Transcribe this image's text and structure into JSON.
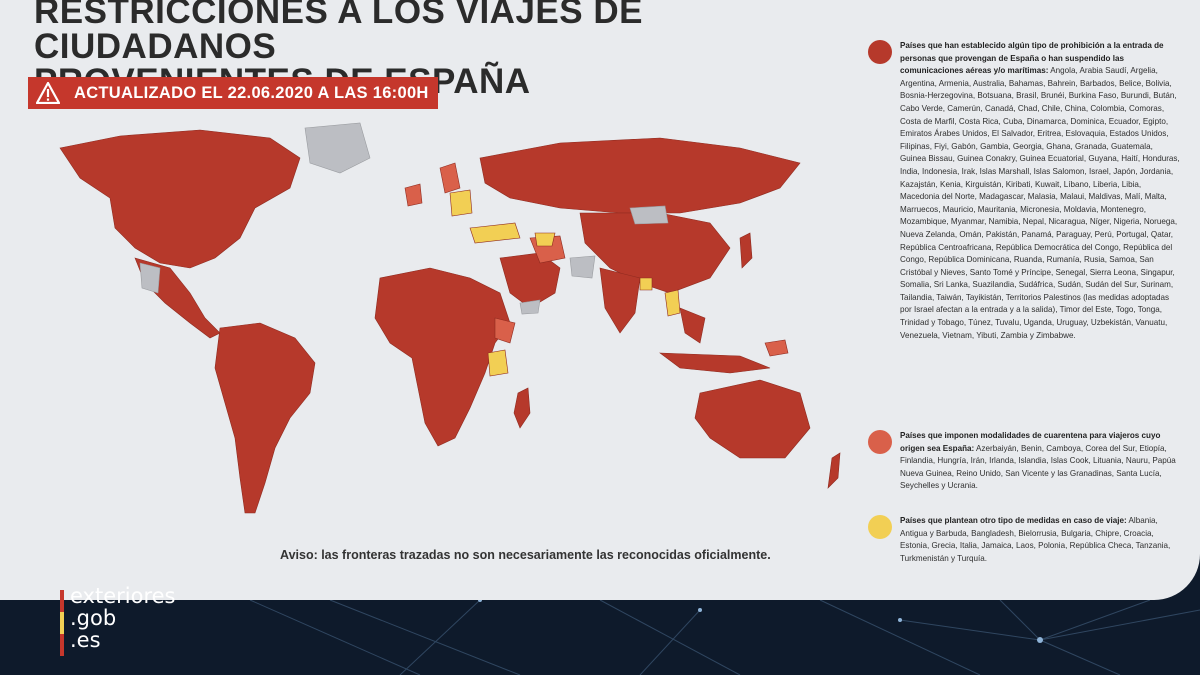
{
  "title_line1": "RESTRICCIONES A LOS VIAJES DE CIUDADANOS",
  "title_line2": "PROVENIENTES DE ESPAÑA",
  "updated_label": "ACTUALIZADO EL 22.06.2020 A LAS 16:00H",
  "notice": "Aviso: las fronteras trazadas no son necesariamente las reconocidas oficialmente.",
  "colors": {
    "prohibition": "#b6392b",
    "quarantine": "#d9604a",
    "other_measures": "#f2cf54",
    "no_data": "#bcbec3",
    "banner": "#c5372c"
  },
  "legend": [
    {
      "color": "#b6392b",
      "heading": "Países que han establecido algún tipo de prohibición a la entrada de personas que provengan de España o han suspendido las comunicaciones aéreas y/o marítimas:",
      "countries": "Angola, Arabia Saudí, Argelia, Argentina, Armenia, Australia, Bahamas, Bahrein, Barbados, Belice, Bolivia, Bosnia-Herzegovina, Botsuana, Brasil, Brunéi, Burkina Faso, Burundi, Bután, Cabo Verde, Camerún, Canadá, Chad, Chile, China, Colombia, Comoras, Costa de Marfil, Costa Rica, Cuba, Dinamarca, Dominica, Ecuador, Egipto, Emiratos Árabes Unidos, El Salvador, Eritrea, Eslovaquia, Estados Unidos, Filipinas, Fiyi, Gabón, Gambia, Georgia, Ghana, Granada, Guatemala, Guinea Bissau, Guinea Conakry, Guinea Ecuatorial, Guyana, Haití, Honduras, India, Indonesia, Irak, Islas Marshall, Islas Salomon, Israel, Japón, Jordania, Kazajstán, Kenia, Kirguistán, Kiribati, Kuwait, Líbano, Liberia, Libia, Macedonia del Norte, Madagascar, Malasia, Malaui, Maldivas, Malí, Malta, Marruecos, Mauricio, Mauritania, Micronesia, Moldavia, Montenegro, Mozambique, Myanmar, Namibia, Nepal, Nicaragua, Níger, Nigeria, Noruega, Nueva Zelanda, Omán, Pakistán, Panamá, Paraguay, Perú, Portugal, Qatar, República Centroafricana, República Democrática del Congo, República del Congo, República Dominicana, Ruanda, Rumanía, Rusia, Samoa, San Cristóbal y Nieves, Santo Tomé y Príncipe, Senegal, Sierra Leona, Singapur, Somalia, Sri Lanka, Suazilandia, Sudáfrica, Sudán, Sudán del Sur, Surinam, Tailandia, Taiwán, Tayikistán, Territorios Palestinos (las medidas adoptadas por Israel afectan a la entrada y a la salida), Timor del Este, Togo, Tonga, Trinidad y Tobago, Túnez, Tuvalu, Uganda, Uruguay, Uzbekistán, Vanuatu, Venezuela, Vietnam, Yibuti, Zambia y Zimbabwe."
    },
    {
      "color": "#d9604a",
      "heading": "Países que imponen modalidades de cuarentena para viajeros cuyo origen sea España:",
      "countries": "Azerbaiyán, Benin, Camboya, Corea del Sur, Etiopía, Finlandia, Hungría, Irán, Irlanda, Islandia, Islas Cook, Lituania, Nauru, Papúa Nueva Guinea, Reino Unido, San Vicente y las Granadinas, Santa Lucía, Seychelles y Ucrania."
    },
    {
      "color": "#f2cf54",
      "heading": "Países que plantean otro tipo de medidas en caso de viaje:",
      "countries": "Albania, Antigua y Barbuda, Bangladesh, Bielorrusia, Bulgaria, Chipre, Croacia, Estonia, Grecia, Italia, Jamaica, Laos, Polonia, República Checa, Tanzania, Turkmenistán y Turquía."
    }
  ],
  "logo": {
    "line1": "exteriores",
    "line2": ".gob",
    "line3": ".es",
    "bar_colors": [
      "#c5372c",
      "#f2cf54",
      "#c5372c"
    ]
  }
}
